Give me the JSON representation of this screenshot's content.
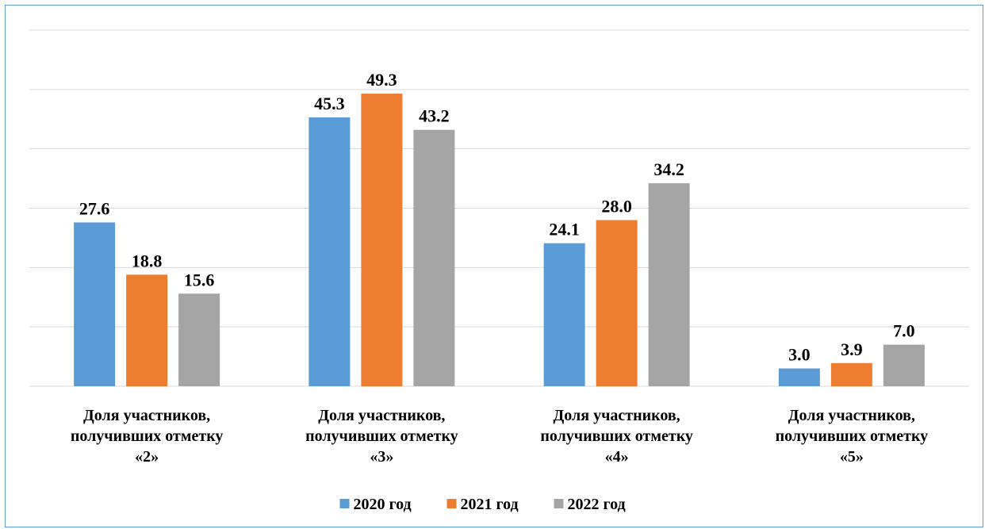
{
  "chart_data": {
    "type": "bar",
    "categories": [
      [
        "Доля участников,",
        "получивших отметку",
        "«2»"
      ],
      [
        "Доля участников,",
        "получивших отметку",
        "«3»"
      ],
      [
        "Доля участников,",
        "получивших отметку",
        "«4»"
      ],
      [
        "Доля участников,",
        "получивших отметку",
        "«5»"
      ]
    ],
    "series": [
      {
        "name": "2020 год",
        "color": "#5b9bd5",
        "values": [
          27.6,
          45.3,
          24.1,
          3.0
        ]
      },
      {
        "name": "2021 год",
        "color": "#ed7d31",
        "values": [
          18.8,
          49.3,
          28.0,
          3.9
        ]
      },
      {
        "name": "2022 год",
        "color": "#a5a5a5",
        "values": [
          15.6,
          43.2,
          34.2,
          7.0
        ]
      }
    ],
    "ylim": [
      0,
      60
    ],
    "y_gridlines": [
      0,
      10,
      20,
      30,
      40,
      50,
      60
    ],
    "y_tick_labels_visible": false,
    "grid": true,
    "legend": "bottom",
    "value_labels_decimals": 1
  }
}
